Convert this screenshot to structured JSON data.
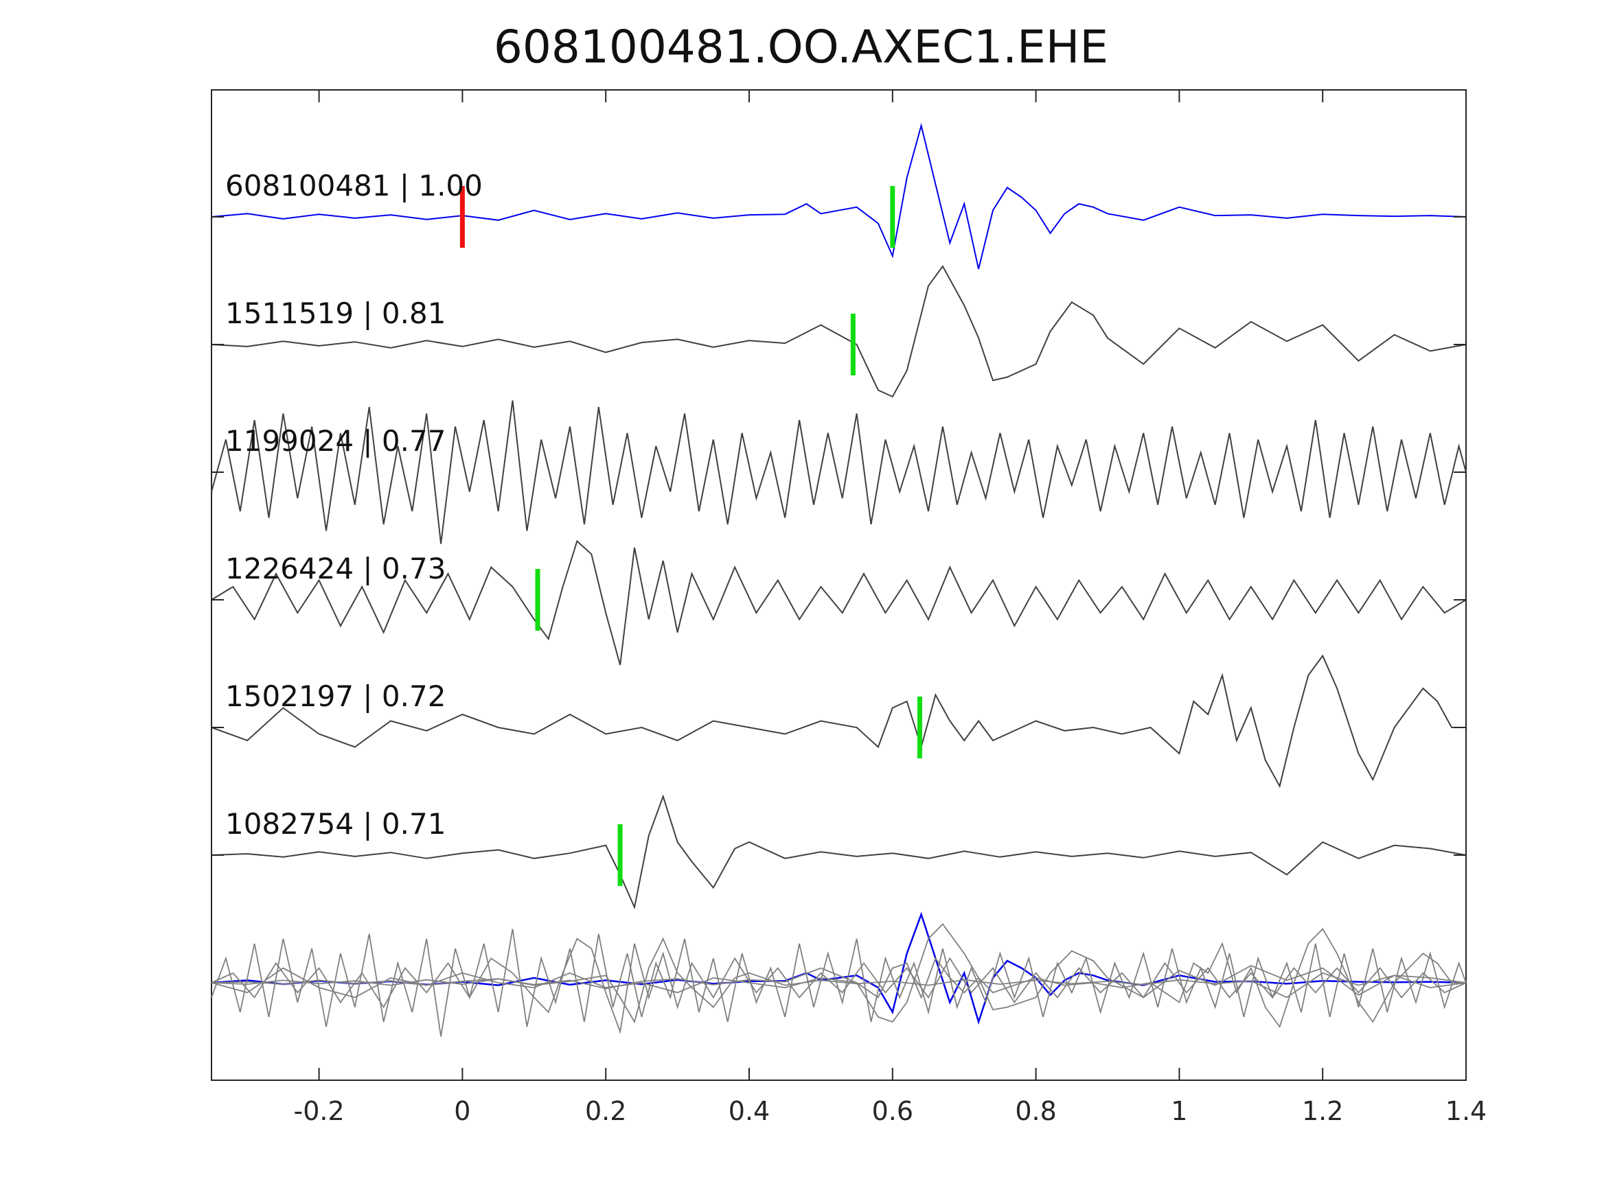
{
  "chart_data": {
    "type": "line",
    "title": "608100481.OO.AXEC1.EHE",
    "xlabel": "",
    "ylabel": "",
    "xlim": [
      -0.35,
      1.4
    ],
    "x_ticks": [
      "-0.2",
      "0",
      "0.2",
      "0.4",
      "0.6",
      "0.8",
      "1",
      "1.2",
      "1.4"
    ],
    "x_tick_values": [
      -0.2,
      0,
      0.2,
      0.4,
      0.6,
      0.8,
      1.0,
      1.2,
      1.4
    ],
    "grid": false,
    "colors": {
      "reference": "#0000ee",
      "trace": "#404040",
      "stack": "#808080",
      "red_pick": "#ee1111",
      "green_pick": "#11dd11",
      "axis": "#262626"
    },
    "traces": [
      {
        "label": "608100481 | 1.00",
        "event": "608100481",
        "cc": 1.0,
        "style": "reference",
        "red_pick": 0.0,
        "green_pick": 0.6,
        "x": [
          -0.35,
          -0.3,
          -0.25,
          -0.2,
          -0.15,
          -0.1,
          -0.05,
          0,
          0.05,
          0.1,
          0.15,
          0.2,
          0.25,
          0.3,
          0.35,
          0.4,
          0.45,
          0.48,
          0.5,
          0.55,
          0.58,
          0.6,
          0.62,
          0.64,
          0.66,
          0.68,
          0.7,
          0.72,
          0.74,
          0.76,
          0.78,
          0.8,
          0.82,
          0.84,
          0.86,
          0.88,
          0.9,
          0.95,
          1.0,
          1.05,
          1.1,
          1.15,
          1.2,
          1.25,
          1.3,
          1.35,
          1.4
        ],
        "y": [
          0,
          0.05,
          -0.03,
          0.04,
          -0.02,
          0.03,
          -0.04,
          0.02,
          -0.05,
          0.1,
          -0.04,
          0.05,
          -0.03,
          0.06,
          -0.02,
          0.03,
          0.04,
          0.2,
          0.05,
          0.15,
          -0.1,
          -0.6,
          0.6,
          1.4,
          0.5,
          -0.4,
          0.2,
          -0.8,
          0.1,
          0.45,
          0.3,
          0.1,
          -0.25,
          0.05,
          0.2,
          0.15,
          0.05,
          -0.05,
          0.15,
          0.02,
          0.03,
          -0.02,
          0.04,
          0.02,
          0.01,
          0.02,
          0
        ]
      },
      {
        "label": "1511519 | 0.81",
        "event": "1511519",
        "cc": 0.81,
        "style": "trace",
        "green_pick": 0.545,
        "x": [
          -0.35,
          -0.3,
          -0.25,
          -0.2,
          -0.15,
          -0.1,
          -0.05,
          0,
          0.05,
          0.1,
          0.15,
          0.2,
          0.25,
          0.3,
          0.35,
          0.4,
          0.45,
          0.5,
          0.55,
          0.58,
          0.6,
          0.62,
          0.65,
          0.67,
          0.7,
          0.72,
          0.74,
          0.76,
          0.8,
          0.82,
          0.85,
          0.88,
          0.9,
          0.95,
          1.0,
          1.05,
          1.1,
          1.15,
          1.2,
          1.25,
          1.3,
          1.35,
          1.4
        ],
        "y": [
          0,
          -0.03,
          0.05,
          -0.02,
          0.04,
          -0.05,
          0.06,
          -0.03,
          0.08,
          -0.04,
          0.05,
          -0.12,
          0.03,
          0.08,
          -0.04,
          0.06,
          0.02,
          0.3,
          0.0,
          -0.7,
          -0.8,
          -0.4,
          0.9,
          1.2,
          0.6,
          0.1,
          -0.55,
          -0.5,
          -0.3,
          0.2,
          0.65,
          0.45,
          0.1,
          -0.3,
          0.25,
          -0.05,
          0.35,
          0.05,
          0.3,
          -0.25,
          0.15,
          -0.1,
          0
        ]
      },
      {
        "label": "1199024 | 0.77",
        "event": "1199024",
        "cc": 0.77,
        "style": "trace",
        "x": [
          -0.35,
          -0.33,
          -0.31,
          -0.29,
          -0.27,
          -0.25,
          -0.23,
          -0.21,
          -0.19,
          -0.17,
          -0.15,
          -0.13,
          -0.11,
          -0.09,
          -0.07,
          -0.05,
          -0.03,
          -0.01,
          0.01,
          0.03,
          0.05,
          0.07,
          0.09,
          0.11,
          0.13,
          0.15,
          0.17,
          0.19,
          0.21,
          0.23,
          0.25,
          0.27,
          0.29,
          0.31,
          0.33,
          0.35,
          0.37,
          0.39,
          0.41,
          0.43,
          0.45,
          0.47,
          0.49,
          0.51,
          0.53,
          0.55,
          0.57,
          0.59,
          0.61,
          0.63,
          0.65,
          0.67,
          0.69,
          0.71,
          0.73,
          0.75,
          0.77,
          0.79,
          0.81,
          0.83,
          0.85,
          0.87,
          0.89,
          0.91,
          0.93,
          0.95,
          0.97,
          0.99,
          1.01,
          1.03,
          1.05,
          1.07,
          1.09,
          1.11,
          1.13,
          1.15,
          1.17,
          1.19,
          1.21,
          1.23,
          1.25,
          1.27,
          1.29,
          1.31,
          1.33,
          1.35,
          1.37,
          1.39,
          1.4
        ],
        "y": [
          -0.3,
          0.5,
          -0.6,
          0.8,
          -0.7,
          0.9,
          -0.4,
          0.7,
          -0.9,
          0.6,
          -0.5,
          1.0,
          -0.8,
          0.4,
          -0.6,
          0.9,
          -1.1,
          0.7,
          -0.3,
          0.8,
          -0.6,
          1.1,
          -0.9,
          0.5,
          -0.4,
          0.7,
          -0.8,
          1.0,
          -0.5,
          0.6,
          -0.7,
          0.4,
          -0.3,
          0.9,
          -0.6,
          0.5,
          -0.8,
          0.6,
          -0.4,
          0.3,
          -0.7,
          0.8,
          -0.5,
          0.6,
          -0.4,
          0.9,
          -0.8,
          0.5,
          -0.3,
          0.4,
          -0.6,
          0.7,
          -0.5,
          0.3,
          -0.4,
          0.6,
          -0.3,
          0.5,
          -0.7,
          0.4,
          -0.2,
          0.5,
          -0.6,
          0.4,
          -0.3,
          0.6,
          -0.5,
          0.7,
          -0.4,
          0.3,
          -0.5,
          0.6,
          -0.7,
          0.5,
          -0.3,
          0.4,
          -0.6,
          0.8,
          -0.7,
          0.6,
          -0.5,
          0.7,
          -0.6,
          0.5,
          -0.4,
          0.6,
          -0.5,
          0.4,
          0
        ]
      },
      {
        "label": "1226424 | 0.73",
        "event": "1226424",
        "cc": 0.73,
        "style": "trace",
        "green_pick": 0.105,
        "x": [
          -0.35,
          -0.32,
          -0.29,
          -0.26,
          -0.23,
          -0.2,
          -0.17,
          -0.14,
          -0.11,
          -0.08,
          -0.05,
          -0.02,
          0.01,
          0.04,
          0.07,
          0.1,
          0.12,
          0.14,
          0.16,
          0.18,
          0.2,
          0.22,
          0.24,
          0.26,
          0.28,
          0.3,
          0.32,
          0.35,
          0.38,
          0.41,
          0.44,
          0.47,
          0.5,
          0.53,
          0.56,
          0.59,
          0.62,
          0.65,
          0.68,
          0.71,
          0.74,
          0.77,
          0.8,
          0.83,
          0.86,
          0.89,
          0.92,
          0.95,
          0.98,
          1.01,
          1.04,
          1.07,
          1.1,
          1.13,
          1.16,
          1.19,
          1.22,
          1.25,
          1.28,
          1.31,
          1.34,
          1.37,
          1.4
        ],
        "y": [
          0,
          0.2,
          -0.3,
          0.4,
          -0.2,
          0.3,
          -0.4,
          0.2,
          -0.5,
          0.3,
          -0.2,
          0.4,
          -0.3,
          0.5,
          0.2,
          -0.3,
          -0.6,
          0.2,
          0.9,
          0.7,
          -0.2,
          -1.0,
          0.8,
          -0.3,
          0.6,
          -0.5,
          0.4,
          -0.3,
          0.5,
          -0.2,
          0.3,
          -0.3,
          0.2,
          -0.2,
          0.4,
          -0.2,
          0.3,
          -0.3,
          0.5,
          -0.2,
          0.3,
          -0.4,
          0.2,
          -0.3,
          0.3,
          -0.2,
          0.2,
          -0.3,
          0.4,
          -0.2,
          0.3,
          -0.3,
          0.2,
          -0.3,
          0.3,
          -0.2,
          0.3,
          -0.2,
          0.3,
          -0.3,
          0.2,
          -0.2,
          0
        ]
      },
      {
        "label": "1502197 | 0.72",
        "event": "1502197",
        "cc": 0.72,
        "style": "trace",
        "green_pick": 0.638,
        "x": [
          -0.35,
          -0.3,
          -0.25,
          -0.2,
          -0.15,
          -0.1,
          -0.05,
          0,
          0.05,
          0.1,
          0.15,
          0.2,
          0.25,
          0.3,
          0.35,
          0.4,
          0.45,
          0.5,
          0.55,
          0.58,
          0.6,
          0.62,
          0.64,
          0.66,
          0.68,
          0.7,
          0.72,
          0.74,
          0.76,
          0.8,
          0.84,
          0.88,
          0.92,
          0.96,
          1.0,
          1.02,
          1.04,
          1.06,
          1.08,
          1.1,
          1.12,
          1.14,
          1.16,
          1.18,
          1.2,
          1.22,
          1.25,
          1.27,
          1.3,
          1.32,
          1.34,
          1.36,
          1.38,
          1.4
        ],
        "y": [
          0,
          -0.2,
          0.3,
          -0.1,
          -0.3,
          0.1,
          -0.05,
          0.2,
          0.0,
          -0.1,
          0.2,
          -0.1,
          0.0,
          -0.2,
          0.1,
          0.0,
          -0.1,
          0.1,
          0.0,
          -0.3,
          0.3,
          0.4,
          -0.3,
          0.5,
          0.1,
          -0.2,
          0.1,
          -0.2,
          -0.1,
          0.1,
          -0.05,
          0.0,
          -0.1,
          0.0,
          -0.4,
          0.4,
          0.2,
          0.8,
          -0.2,
          0.3,
          -0.5,
          -0.9,
          0.0,
          0.8,
          1.1,
          0.6,
          -0.4,
          -0.8,
          0.0,
          0.3,
          0.6,
          0.4,
          0.0,
          0
        ]
      },
      {
        "label": "1082754 | 0.71",
        "event": "1082754",
        "cc": 0.71,
        "style": "trace",
        "green_pick": 0.22,
        "x": [
          -0.35,
          -0.3,
          -0.25,
          -0.2,
          -0.15,
          -0.1,
          -0.05,
          0,
          0.05,
          0.1,
          0.15,
          0.2,
          0.22,
          0.24,
          0.26,
          0.28,
          0.3,
          0.32,
          0.35,
          0.38,
          0.4,
          0.45,
          0.5,
          0.55,
          0.6,
          0.65,
          0.7,
          0.75,
          0.8,
          0.85,
          0.9,
          0.95,
          1.0,
          1.05,
          1.1,
          1.15,
          1.2,
          1.25,
          1.3,
          1.35,
          1.4
        ],
        "y": [
          0,
          0.02,
          -0.03,
          0.05,
          -0.02,
          0.04,
          -0.05,
          0.03,
          0.08,
          -0.05,
          0.03,
          0.15,
          -0.3,
          -0.8,
          0.3,
          0.9,
          0.2,
          -0.1,
          -0.5,
          0.1,
          0.2,
          -0.05,
          0.05,
          -0.02,
          0.03,
          -0.05,
          0.06,
          -0.03,
          0.05,
          -0.02,
          0.03,
          -0.04,
          0.06,
          -0.02,
          0.04,
          -0.3,
          0.2,
          -0.05,
          0.15,
          0.1,
          0
        ]
      }
    ],
    "stack": {
      "description_visible": false,
      "series_count": 6
    }
  }
}
